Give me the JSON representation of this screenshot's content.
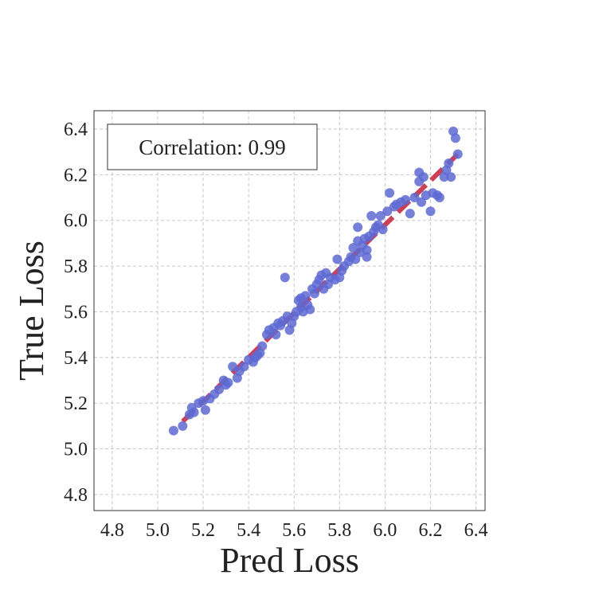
{
  "chart_data": {
    "type": "scatter",
    "xlabel": "Pred Loss",
    "ylabel": "True Loss",
    "xlim": [
      4.72,
      6.44
    ],
    "ylim": [
      4.73,
      6.48
    ],
    "xticks": [
      "4.8",
      "5.0",
      "5.2",
      "5.4",
      "5.6",
      "5.8",
      "6.0",
      "6.2",
      "6.4"
    ],
    "yticks": [
      "4.8",
      "5.0",
      "5.2",
      "5.4",
      "5.6",
      "5.8",
      "6.0",
      "6.2",
      "6.4"
    ],
    "xtick_values": [
      4.8,
      5.0,
      5.2,
      5.4,
      5.6,
      5.8,
      6.0,
      6.2,
      6.4
    ],
    "ytick_values": [
      4.8,
      5.0,
      5.2,
      5.4,
      5.6,
      5.8,
      6.0,
      6.2,
      6.4
    ],
    "grid": true,
    "annotation": "Correlation: 0.99",
    "annotation_position": "top-left",
    "point_color": "#5e6ad2",
    "fit_line_color": "#c8364e",
    "fit_line": {
      "x": [
        5.11,
        6.32
      ],
      "y": [
        5.12,
        6.29
      ]
    },
    "series": [
      {
        "points": [
          [
            5.11,
            5.1
          ],
          [
            5.14,
            5.15
          ],
          [
            5.15,
            5.18
          ],
          [
            5.18,
            5.2
          ],
          [
            5.21,
            5.17
          ],
          [
            5.2,
            5.21
          ],
          [
            5.23,
            5.22
          ],
          [
            5.25,
            5.24
          ],
          [
            5.27,
            5.26
          ],
          [
            5.29,
            5.3
          ],
          [
            5.3,
            5.28
          ],
          [
            5.33,
            5.36
          ],
          [
            5.35,
            5.31
          ],
          [
            5.36,
            5.34
          ],
          [
            5.38,
            5.36
          ],
          [
            5.4,
            5.39
          ],
          [
            5.42,
            5.38
          ],
          [
            5.43,
            5.4
          ],
          [
            5.45,
            5.42
          ],
          [
            5.46,
            5.45
          ],
          [
            5.48,
            5.5
          ],
          [
            5.49,
            5.52
          ],
          [
            5.51,
            5.53
          ],
          [
            5.52,
            5.5
          ],
          [
            5.53,
            5.55
          ],
          [
            5.54,
            5.54
          ],
          [
            5.55,
            5.56
          ],
          [
            5.56,
            5.75
          ],
          [
            5.58,
            5.52
          ],
          [
            5.59,
            5.55
          ],
          [
            5.6,
            5.58
          ],
          [
            5.61,
            5.6
          ],
          [
            5.62,
            5.65
          ],
          [
            5.63,
            5.62
          ],
          [
            5.63,
            5.66
          ],
          [
            5.64,
            5.6
          ],
          [
            5.65,
            5.67
          ],
          [
            5.66,
            5.63
          ],
          [
            5.67,
            5.61
          ],
          [
            5.68,
            5.7
          ],
          [
            5.69,
            5.68
          ],
          [
            5.7,
            5.72
          ],
          [
            5.71,
            5.74
          ],
          [
            5.72,
            5.76
          ],
          [
            5.73,
            5.7
          ],
          [
            5.74,
            5.77
          ],
          [
            5.75,
            5.72
          ],
          [
            5.76,
            5.75
          ],
          [
            5.78,
            5.74
          ],
          [
            5.79,
            5.83
          ],
          [
            5.8,
            5.75
          ],
          [
            5.81,
            5.78
          ],
          [
            5.82,
            5.8
          ],
          [
            5.84,
            5.82
          ],
          [
            5.85,
            5.84
          ],
          [
            5.86,
            5.88
          ],
          [
            5.87,
            5.83
          ],
          [
            5.88,
            5.91
          ],
          [
            5.88,
            5.97
          ],
          [
            5.89,
            5.86
          ],
          [
            5.9,
            5.89
          ],
          [
            5.91,
            5.92
          ],
          [
            5.92,
            5.87
          ],
          [
            5.92,
            5.84
          ],
          [
            5.93,
            5.93
          ],
          [
            5.94,
            6.02
          ],
          [
            5.95,
            5.95
          ],
          [
            5.96,
            5.97
          ],
          [
            5.97,
            5.98
          ],
          [
            5.98,
            6.02
          ],
          [
            5.99,
            5.96
          ],
          [
            6.01,
            6.04
          ],
          [
            6.02,
            6.12
          ],
          [
            6.04,
            6.06
          ],
          [
            6.05,
            6.07
          ],
          [
            6.07,
            6.08
          ],
          [
            6.09,
            6.09
          ],
          [
            6.11,
            6.03
          ],
          [
            6.13,
            6.1
          ],
          [
            6.15,
            6.21
          ],
          [
            6.15,
            6.17
          ],
          [
            6.16,
            6.08
          ],
          [
            6.17,
            6.19
          ],
          [
            6.18,
            6.11
          ],
          [
            6.2,
            6.04
          ],
          [
            6.21,
            6.12
          ],
          [
            6.23,
            6.11
          ],
          [
            6.24,
            6.1
          ],
          [
            6.26,
            6.19
          ],
          [
            6.27,
            6.22
          ],
          [
            6.28,
            6.25
          ],
          [
            6.29,
            6.19
          ],
          [
            6.3,
            6.39
          ],
          [
            6.31,
            6.36
          ],
          [
            6.32,
            6.29
          ],
          [
            5.07,
            5.08
          ],
          [
            5.16,
            5.16
          ],
          [
            5.31,
            5.29
          ],
          [
            5.44,
            5.41
          ],
          [
            5.57,
            5.58
          ]
        ]
      }
    ]
  }
}
